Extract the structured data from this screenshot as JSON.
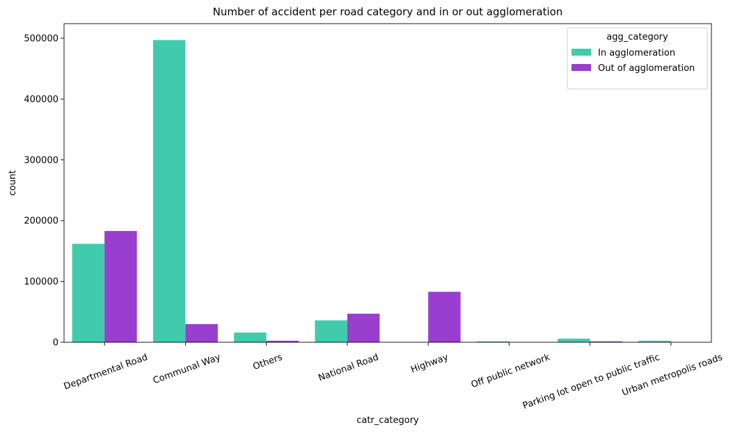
{
  "chart_data": {
    "type": "bar",
    "title": "Number of accident per road category and in or out agglomeration",
    "xlabel": "catr_category",
    "ylabel": "count",
    "categories": [
      "Departmental Road",
      "Communal Way",
      "Others",
      "National Road",
      "Highway",
      "Off public network",
      "Parking lot open to public traffic",
      "Urban metropolis roads"
    ],
    "series": [
      {
        "name": "In agglomeration",
        "color": "#40cbad",
        "values": [
          162000,
          497000,
          16000,
          36000,
          0,
          1500,
          6000,
          2500
        ]
      },
      {
        "name": "Out of agglomeration",
        "color": "#993ecf",
        "values": [
          183000,
          30000,
          2500,
          47000,
          83000,
          0,
          1500,
          0
        ]
      }
    ],
    "ylim": [
      0,
      524000
    ],
    "yticks": [
      0,
      100000,
      200000,
      300000,
      400000,
      500000
    ],
    "ytick_labels": [
      "0",
      "100000",
      "200000",
      "300000",
      "400000",
      "500000"
    ],
    "grid": false,
    "legend": {
      "title": "agg_category",
      "placement": "top-right"
    }
  }
}
